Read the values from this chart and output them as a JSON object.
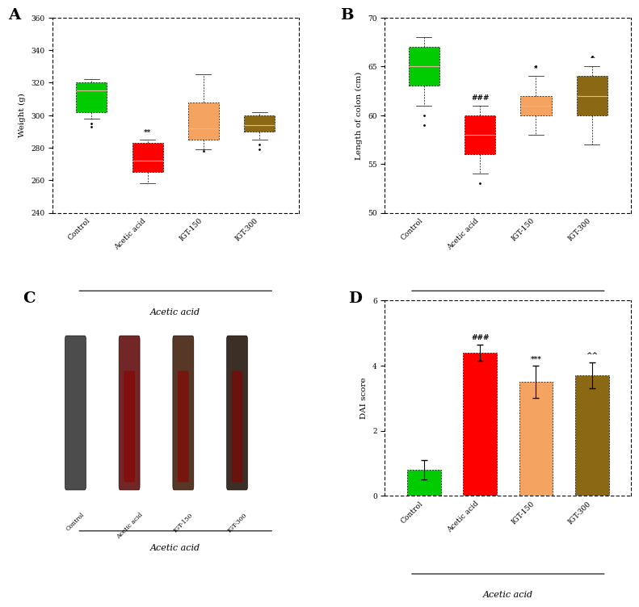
{
  "panel_A": {
    "title": "A",
    "ylabel": "Weight (g)",
    "xlabel_bottom": "Acetic acid",
    "ylim": [
      240,
      360
    ],
    "yticks": [
      240,
      260,
      280,
      300,
      320,
      340,
      360
    ],
    "categories": [
      "Control",
      "Acetic acid",
      "IGT-150",
      "IGT-300"
    ],
    "colors": [
      "#00cc00",
      "#ff0000",
      "#f4a460",
      "#8b6914"
    ],
    "box_data": {
      "Control": {
        "q1": 302,
        "median": 315,
        "q3": 320,
        "whislo": 298,
        "whishi": 322,
        "fliers": [
          295,
          293
        ]
      },
      "Acetic acid": {
        "q1": 265,
        "median": 272,
        "q3": 283,
        "whislo": 258,
        "whishi": 285,
        "fliers": []
      },
      "IGT-150": {
        "q1": 285,
        "median": 292,
        "q3": 308,
        "whislo": 279,
        "whishi": 325,
        "fliers": [
          278
        ]
      },
      "IGT-300": {
        "q1": 290,
        "median": 294,
        "q3": 300,
        "whislo": 285,
        "whishi": 302,
        "fliers": [
          282,
          279
        ]
      }
    },
    "annotations": {
      "Acetic acid": "**",
      "IGT-150": "",
      "IGT-300": ""
    }
  },
  "panel_B": {
    "title": "B",
    "ylabel": "Length of colon (cm)",
    "xlabel_bottom": "Acetic acid",
    "ylim": [
      50,
      70
    ],
    "yticks": [
      50,
      55,
      60,
      65,
      70
    ],
    "categories": [
      "Control",
      "Acetic acid",
      "IGT-150",
      "IGT-300"
    ],
    "colors": [
      "#00cc00",
      "#ff0000",
      "#f4a460",
      "#8b6914"
    ],
    "box_data": {
      "Control": {
        "q1": 63,
        "median": 65,
        "q3": 67,
        "whislo": 61,
        "whishi": 68,
        "fliers": [
          60,
          59
        ]
      },
      "Acetic acid": {
        "q1": 56,
        "median": 58,
        "q3": 60,
        "whislo": 54,
        "whishi": 61,
        "fliers": [
          53
        ]
      },
      "IGT-150": {
        "q1": 60,
        "median": 61,
        "q3": 62,
        "whislo": 58,
        "whishi": 64,
        "fliers": [
          65
        ]
      },
      "IGT-300": {
        "q1": 60,
        "median": 62,
        "q3": 64,
        "whislo": 57,
        "whishi": 65,
        "fliers": [
          66
        ]
      }
    },
    "annotations": {
      "Acetic acid": "###",
      "IGT-150": "*",
      "IGT-300": "^"
    }
  },
  "panel_C": {
    "title": "C",
    "xlabel_bottom": "Acetic acid",
    "sublabels": [
      "Control",
      "Acetic acid",
      "IGT-150",
      "IGT-300"
    ]
  },
  "panel_D": {
    "title": "D",
    "ylabel": "DAI score",
    "xlabel_bottom": "Acetic acid",
    "ylim": [
      0,
      6
    ],
    "yticks": [
      0,
      2,
      4,
      6
    ],
    "categories": [
      "Control",
      "Acetic acid",
      "IGT-150",
      "IGT-300"
    ],
    "colors": [
      "#00cc00",
      "#ff0000",
      "#f4a460",
      "#8b6914"
    ],
    "values": [
      0.8,
      4.4,
      3.5,
      3.7
    ],
    "errors": [
      0.3,
      0.25,
      0.5,
      0.4
    ],
    "annotations": {
      "Acetic acid": "###",
      "IGT-150": "***",
      "IGT-300": "^^"
    }
  },
  "figure_bg": "#ffffff",
  "axes_bg": "#ffffff",
  "dotted_border": true,
  "font_family": "serif"
}
